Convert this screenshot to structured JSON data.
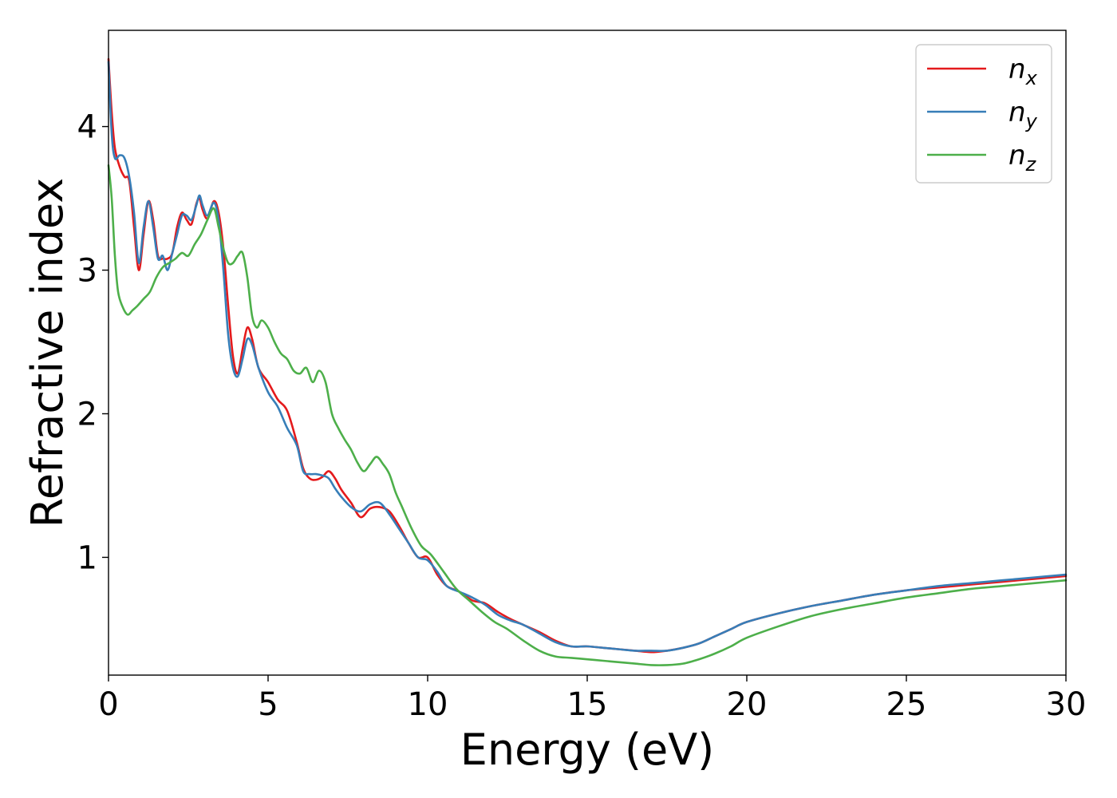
{
  "chart_data": {
    "type": "line",
    "title": "",
    "xlabel": "Energy (eV)",
    "ylabel": "Refractive index",
    "xlim": [
      0,
      30
    ],
    "ylim": [
      0.18,
      4.67
    ],
    "xticks": [
      0,
      5,
      10,
      15,
      20,
      25,
      30
    ],
    "yticks": [
      1,
      2,
      3,
      4
    ],
    "grid": false,
    "legend_position": "top-right",
    "series": [
      {
        "name": "n_x",
        "base": "n",
        "sub": "x",
        "color": "#e41a1c",
        "x": [
          0,
          0.1,
          0.2,
          0.35,
          0.5,
          0.65,
          0.8,
          0.95,
          1.1,
          1.25,
          1.4,
          1.55,
          1.7,
          1.85,
          2.0,
          2.15,
          2.3,
          2.45,
          2.6,
          2.75,
          2.85,
          2.95,
          3.1,
          3.3,
          3.45,
          3.6,
          3.75,
          3.9,
          4.05,
          4.2,
          4.35,
          4.5,
          4.7,
          5.0,
          5.3,
          5.6,
          5.9,
          6.1,
          6.3,
          6.5,
          6.7,
          6.9,
          7.1,
          7.3,
          7.6,
          7.9,
          8.2,
          8.5,
          8.8,
          9.1,
          9.4,
          9.7,
          10.0,
          10.3,
          10.6,
          11.0,
          11.4,
          11.8,
          12.2,
          12.6,
          13.0,
          13.5,
          14.0,
          14.5,
          15.0,
          15.5,
          16.0,
          16.5,
          17.0,
          17.5,
          18.0,
          18.5,
          19.0,
          19.5,
          20.0,
          21.0,
          22.0,
          23.0,
          24.0,
          25.0,
          26.0,
          27.0,
          28.0,
          29.0,
          30.0
        ],
        "values": [
          4.47,
          4.1,
          3.85,
          3.72,
          3.65,
          3.62,
          3.3,
          3.0,
          3.25,
          3.48,
          3.35,
          3.1,
          3.08,
          3.08,
          3.12,
          3.3,
          3.4,
          3.35,
          3.32,
          3.46,
          3.5,
          3.42,
          3.36,
          3.48,
          3.4,
          3.15,
          2.75,
          2.4,
          2.28,
          2.45,
          2.6,
          2.52,
          2.32,
          2.22,
          2.1,
          2.02,
          1.8,
          1.62,
          1.55,
          1.54,
          1.56,
          1.6,
          1.55,
          1.47,
          1.38,
          1.28,
          1.34,
          1.35,
          1.32,
          1.22,
          1.1,
          1.0,
          1.0,
          0.88,
          0.8,
          0.76,
          0.7,
          0.68,
          0.62,
          0.57,
          0.53,
          0.48,
          0.42,
          0.38,
          0.38,
          0.37,
          0.36,
          0.35,
          0.34,
          0.35,
          0.37,
          0.4,
          0.45,
          0.5,
          0.55,
          0.61,
          0.66,
          0.7,
          0.74,
          0.77,
          0.79,
          0.81,
          0.83,
          0.85,
          0.87
        ]
      },
      {
        "name": "n_y",
        "base": "n",
        "sub": "y",
        "color": "#377eb8",
        "x": [
          0,
          0.1,
          0.2,
          0.35,
          0.5,
          0.65,
          0.8,
          0.95,
          1.1,
          1.25,
          1.4,
          1.55,
          1.7,
          1.85,
          2.0,
          2.15,
          2.3,
          2.45,
          2.6,
          2.75,
          2.85,
          2.95,
          3.1,
          3.3,
          3.45,
          3.6,
          3.75,
          3.9,
          4.05,
          4.2,
          4.35,
          4.5,
          4.7,
          5.0,
          5.3,
          5.6,
          5.9,
          6.1,
          6.3,
          6.5,
          6.7,
          6.9,
          7.1,
          7.3,
          7.6,
          7.9,
          8.2,
          8.5,
          8.8,
          9.1,
          9.4,
          9.7,
          10.0,
          10.3,
          10.6,
          11.0,
          11.4,
          11.8,
          12.2,
          12.6,
          13.0,
          13.5,
          14.0,
          14.5,
          15.0,
          15.5,
          16.0,
          16.5,
          17.0,
          17.5,
          18.0,
          18.5,
          19.0,
          19.5,
          20.0,
          21.0,
          22.0,
          23.0,
          24.0,
          25.0,
          26.0,
          27.0,
          28.0,
          29.0,
          30.0
        ],
        "values": [
          4.45,
          3.95,
          3.78,
          3.8,
          3.78,
          3.65,
          3.4,
          3.05,
          3.3,
          3.48,
          3.3,
          3.08,
          3.1,
          3.0,
          3.12,
          3.25,
          3.38,
          3.38,
          3.35,
          3.45,
          3.52,
          3.45,
          3.38,
          3.47,
          3.35,
          3.0,
          2.55,
          2.32,
          2.26,
          2.38,
          2.52,
          2.48,
          2.32,
          2.15,
          2.05,
          1.9,
          1.78,
          1.6,
          1.58,
          1.58,
          1.57,
          1.55,
          1.48,
          1.42,
          1.35,
          1.32,
          1.37,
          1.38,
          1.3,
          1.2,
          1.1,
          1.0,
          0.98,
          0.9,
          0.8,
          0.76,
          0.72,
          0.67,
          0.6,
          0.56,
          0.53,
          0.47,
          0.41,
          0.38,
          0.38,
          0.37,
          0.36,
          0.35,
          0.35,
          0.35,
          0.37,
          0.4,
          0.45,
          0.5,
          0.55,
          0.61,
          0.66,
          0.7,
          0.74,
          0.77,
          0.8,
          0.82,
          0.84,
          0.86,
          0.88
        ]
      },
      {
        "name": "n_z",
        "base": "n",
        "sub": "z",
        "color": "#4daf4a",
        "x": [
          0,
          0.1,
          0.2,
          0.3,
          0.45,
          0.6,
          0.75,
          0.9,
          1.1,
          1.3,
          1.5,
          1.7,
          1.9,
          2.1,
          2.3,
          2.5,
          2.7,
          2.9,
          3.1,
          3.3,
          3.45,
          3.6,
          3.75,
          3.9,
          4.05,
          4.2,
          4.35,
          4.5,
          4.65,
          4.8,
          5.0,
          5.2,
          5.4,
          5.6,
          5.8,
          6.0,
          6.2,
          6.4,
          6.6,
          6.8,
          7.0,
          7.2,
          7.4,
          7.6,
          7.8,
          8.0,
          8.2,
          8.4,
          8.6,
          8.8,
          9.0,
          9.2,
          9.5,
          9.8,
          10.1,
          10.5,
          10.9,
          11.3,
          11.7,
          12.1,
          12.5,
          13.0,
          13.5,
          14.0,
          14.5,
          15.0,
          15.5,
          16.0,
          16.5,
          17.0,
          17.5,
          18.0,
          18.5,
          19.0,
          19.5,
          20.0,
          21.0,
          22.0,
          23.0,
          24.0,
          25.0,
          26.0,
          27.0,
          28.0,
          29.0,
          30.0
        ],
        "values": [
          3.73,
          3.5,
          3.1,
          2.85,
          2.74,
          2.69,
          2.72,
          2.75,
          2.8,
          2.85,
          2.95,
          3.02,
          3.05,
          3.08,
          3.12,
          3.1,
          3.18,
          3.25,
          3.35,
          3.43,
          3.3,
          3.15,
          3.05,
          3.05,
          3.1,
          3.12,
          2.95,
          2.68,
          2.6,
          2.65,
          2.6,
          2.5,
          2.42,
          2.38,
          2.3,
          2.28,
          2.32,
          2.22,
          2.3,
          2.22,
          2.0,
          1.9,
          1.82,
          1.75,
          1.66,
          1.6,
          1.65,
          1.7,
          1.65,
          1.58,
          1.45,
          1.35,
          1.2,
          1.08,
          1.02,
          0.9,
          0.78,
          0.7,
          0.62,
          0.55,
          0.5,
          0.42,
          0.35,
          0.31,
          0.3,
          0.29,
          0.28,
          0.27,
          0.26,
          0.25,
          0.25,
          0.26,
          0.29,
          0.33,
          0.38,
          0.44,
          0.52,
          0.59,
          0.64,
          0.68,
          0.72,
          0.75,
          0.78,
          0.8,
          0.82,
          0.84
        ]
      }
    ]
  }
}
